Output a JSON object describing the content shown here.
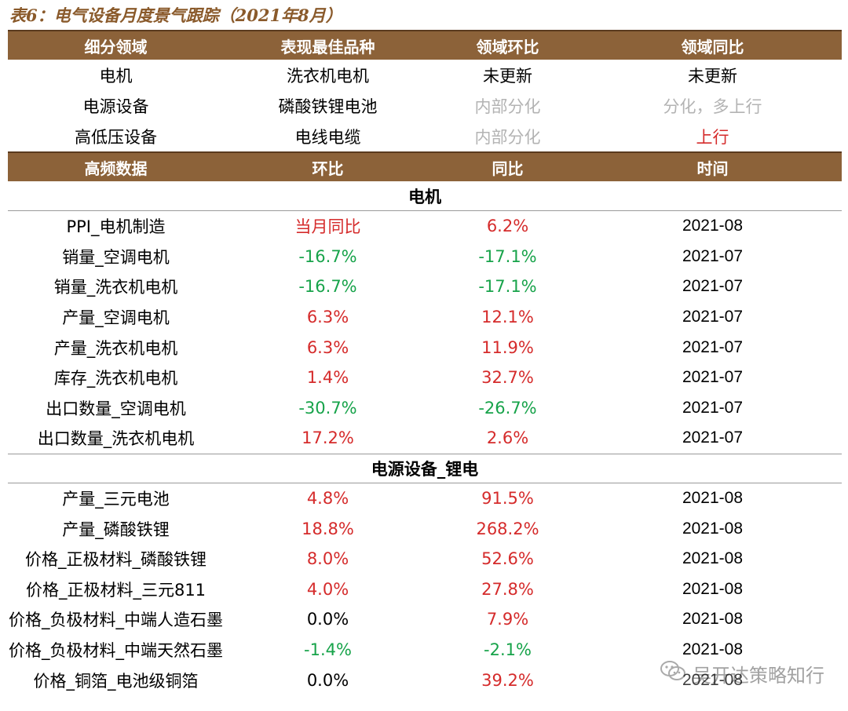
{
  "caption": "表6：电气设备月度景气跟踪（2021年8月）",
  "summary": {
    "headers": [
      "细分领域",
      "表现最佳品种",
      "领域环比",
      "领域同比"
    ],
    "rows": [
      {
        "field": "电机",
        "best": "洗衣机电机",
        "mom": "未更新",
        "mom_tone": "txt",
        "yoy": "未更新",
        "yoy_tone": "txt"
      },
      {
        "field": "电源设备",
        "best": "磷酸铁锂电池",
        "mom": "内部分化",
        "mom_tone": "gray",
        "yoy": "分化，多上行",
        "yoy_tone": "gray"
      },
      {
        "field": "高低压设备",
        "best": "电线电缆",
        "mom": "内部分化",
        "mom_tone": "gray",
        "yoy": "上行",
        "yoy_tone": "pos"
      }
    ]
  },
  "freq_headers": [
    "高频数据",
    "环比",
    "同比",
    "时间"
  ],
  "sections": [
    {
      "title": "电机",
      "rows": [
        {
          "name": "PPI_电机制造",
          "mom": "当月同比",
          "mom_tone": "pos",
          "yoy": "6.2%",
          "yoy_tone": "pos",
          "date": "2021-08"
        },
        {
          "name": "销量_空调电机",
          "mom": "-16.7%",
          "mom_tone": "neg",
          "yoy": "-17.1%",
          "yoy_tone": "neg",
          "date": "2021-07"
        },
        {
          "name": "销量_洗衣机电机",
          "mom": "-16.7%",
          "mom_tone": "neg",
          "yoy": "-17.1%",
          "yoy_tone": "neg",
          "date": "2021-07"
        },
        {
          "name": "产量_空调电机",
          "mom": "6.3%",
          "mom_tone": "pos",
          "yoy": "12.1%",
          "yoy_tone": "pos",
          "date": "2021-07"
        },
        {
          "name": "产量_洗衣机电机",
          "mom": "6.3%",
          "mom_tone": "pos",
          "yoy": "11.9%",
          "yoy_tone": "pos",
          "date": "2021-07"
        },
        {
          "name": "库存_洗衣机电机",
          "mom": "1.4%",
          "mom_tone": "pos",
          "yoy": "32.7%",
          "yoy_tone": "pos",
          "date": "2021-07"
        },
        {
          "name": "出口数量_空调电机",
          "mom": "-30.7%",
          "mom_tone": "neg",
          "yoy": "-26.7%",
          "yoy_tone": "neg",
          "date": "2021-07"
        },
        {
          "name": "出口数量_洗衣机电机",
          "mom": "17.2%",
          "mom_tone": "pos",
          "yoy": "2.6%",
          "yoy_tone": "pos",
          "date": "2021-07"
        }
      ]
    },
    {
      "title": "电源设备_锂电",
      "rows": [
        {
          "name": "产量_三元电池",
          "mom": "4.8%",
          "mom_tone": "pos",
          "yoy": "91.5%",
          "yoy_tone": "pos",
          "date": "2021-08"
        },
        {
          "name": "产量_磷酸铁锂",
          "mom": "18.8%",
          "mom_tone": "pos",
          "yoy": "268.2%",
          "yoy_tone": "pos",
          "date": "2021-08"
        },
        {
          "name": "价格_正极材料_磷酸铁锂",
          "mom": "8.0%",
          "mom_tone": "pos",
          "yoy": "52.6%",
          "yoy_tone": "pos",
          "date": "2021-08"
        },
        {
          "name": "价格_正极材料_三元811",
          "mom": "4.0%",
          "mom_tone": "pos",
          "yoy": "27.8%",
          "yoy_tone": "pos",
          "date": "2021-08"
        },
        {
          "name": "价格_负极材料_中端人造石墨",
          "mom": "0.0%",
          "mom_tone": "txt",
          "yoy": "7.9%",
          "yoy_tone": "pos",
          "date": "2021-08"
        },
        {
          "name": "价格_负极材料_中端天然石墨",
          "mom": "-1.4%",
          "mom_tone": "neg",
          "yoy": "-2.1%",
          "yoy_tone": "neg",
          "date": "2021-08"
        },
        {
          "name": "价格_铜箔_电池级铜箔",
          "mom": "0.0%",
          "mom_tone": "txt",
          "yoy": "39.2%",
          "yoy_tone": "pos",
          "date": "2021-08"
        }
      ]
    }
  ],
  "watermark": {
    "icon": "wechat-icon",
    "text": "吴开达策略知行"
  },
  "colors": {
    "header_bg": "#8c6239",
    "caption": "#8a5a2b",
    "positive": "#d52b2b",
    "negative": "#17a34a",
    "muted": "#b3b3b3"
  }
}
